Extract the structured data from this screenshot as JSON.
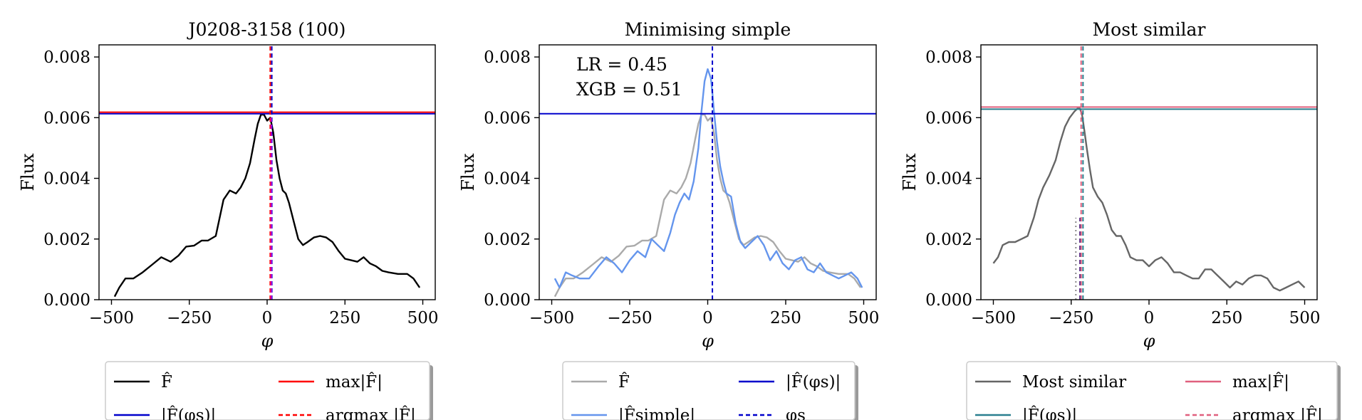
{
  "chart_data": [
    {
      "type": "line",
      "title": "J0208-3158 (100)",
      "xlabel": "φ",
      "ylabel": "Flux",
      "xlim": [
        -540,
        540
      ],
      "ylim": [
        0,
        0.0084
      ],
      "xticks": [
        -500,
        -250,
        0,
        250,
        500
      ],
      "xtick_labels": [
        "−500",
        "−250",
        "0",
        "250",
        "500"
      ],
      "yticks": [
        0,
        0.002,
        0.004,
        0.006,
        0.008
      ],
      "ytick_labels": [
        "0.000",
        "0.002",
        "0.004",
        "0.006",
        "0.008"
      ],
      "annotations": [],
      "series": [
        {
          "name": "F̂",
          "color": "#000000",
          "style": "solid",
          "x": [
            -490,
            -475,
            -455,
            -430,
            -400,
            -370,
            -340,
            -310,
            -285,
            -260,
            -235,
            -210,
            -190,
            -165,
            -140,
            -120,
            -100,
            -85,
            -70,
            -55,
            -40,
            -30,
            -20,
            -10,
            0,
            5,
            10,
            20,
            30,
            40,
            50,
            60,
            70,
            85,
            100,
            115,
            130,
            150,
            170,
            190,
            210,
            230,
            250,
            270,
            290,
            310,
            330,
            350,
            370,
            390,
            420,
            450,
            470,
            490
          ],
          "y": [
            0.0001,
            0.0004,
            0.0007,
            0.0007,
            0.0009,
            0.00115,
            0.0014,
            0.00125,
            0.00145,
            0.00175,
            0.00178,
            0.00195,
            0.00195,
            0.0021,
            0.0033,
            0.0036,
            0.0035,
            0.0037,
            0.004,
            0.0045,
            0.0053,
            0.0058,
            0.0061,
            0.0061,
            0.0059,
            0.00595,
            0.006,
            0.0055,
            0.0046,
            0.004,
            0.0036,
            0.0035,
            0.0032,
            0.0026,
            0.002,
            0.0018,
            0.0019,
            0.00205,
            0.0021,
            0.00205,
            0.0019,
            0.0016,
            0.00135,
            0.0013,
            0.00125,
            0.0014,
            0.0012,
            0.0011,
            0.00095,
            0.0009,
            0.00085,
            0.00085,
            0.0007,
            0.0004
          ]
        },
        {
          "name": "|F̂(φs)|",
          "color": "#0000cc",
          "style": "hline",
          "y": 0.00613
        },
        {
          "name": "max|F̂|",
          "color": "#ff0000",
          "style": "hline",
          "y": 0.00618
        },
        {
          "name": "argmax |F̂|",
          "color": "#ff0000",
          "style": "vline-dashed",
          "x": 10
        },
        {
          "name": "φs",
          "color": "#0000cc",
          "style": "vline-dashed",
          "x": 15
        },
        {
          "name": "",
          "color": "#cc00cc",
          "style": "vline-dashed",
          "x": 13,
          "ymax": 0.006
        }
      ],
      "legend": {
        "placement": "bottom-outside",
        "entries": [
          {
            "label": "F̂",
            "color": "#000000",
            "style": "solid"
          },
          {
            "label": "max|F̂|",
            "color": "#ff0000",
            "style": "solid"
          },
          {
            "label": "|F̂(φs)|",
            "color": "#0000cc",
            "style": "solid"
          },
          {
            "label": "argmax |F̂|",
            "color": "#ff0000",
            "style": "dashed"
          }
        ]
      }
    },
    {
      "type": "line",
      "title": "Minimising simple",
      "xlabel": "φ",
      "ylabel": "Flux",
      "xlim": [
        -540,
        540
      ],
      "ylim": [
        0,
        0.0084
      ],
      "xticks": [
        -500,
        -250,
        0,
        250,
        500
      ],
      "xtick_labels": [
        "−500",
        "−250",
        "0",
        "250",
        "500"
      ],
      "yticks": [
        0,
        0.002,
        0.004,
        0.006,
        0.008
      ],
      "ytick_labels": [
        "0.000",
        "0.002",
        "0.004",
        "0.006",
        "0.008"
      ],
      "annotations": [
        "LR = 0.45",
        "XGB = 0.51"
      ],
      "series": [
        {
          "name": "F̂",
          "color": "#aaaaaa",
          "style": "solid",
          "x": [
            -490,
            -475,
            -455,
            -430,
            -400,
            -370,
            -340,
            -310,
            -285,
            -260,
            -235,
            -210,
            -190,
            -165,
            -140,
            -120,
            -100,
            -85,
            -70,
            -55,
            -40,
            -30,
            -20,
            -10,
            0,
            5,
            10,
            20,
            30,
            40,
            50,
            60,
            70,
            85,
            100,
            115,
            130,
            150,
            170,
            190,
            210,
            230,
            250,
            270,
            290,
            310,
            330,
            350,
            370,
            390,
            420,
            450,
            470,
            490
          ],
          "y": [
            0.0001,
            0.0004,
            0.0007,
            0.0007,
            0.0009,
            0.00115,
            0.0014,
            0.00125,
            0.00145,
            0.00175,
            0.00178,
            0.00195,
            0.00195,
            0.0021,
            0.0033,
            0.0036,
            0.0035,
            0.0037,
            0.004,
            0.0045,
            0.0053,
            0.0058,
            0.0061,
            0.0061,
            0.0059,
            0.00595,
            0.006,
            0.0055,
            0.0046,
            0.004,
            0.0036,
            0.0035,
            0.0032,
            0.0026,
            0.002,
            0.0018,
            0.0019,
            0.00205,
            0.0021,
            0.00205,
            0.0019,
            0.0016,
            0.00135,
            0.0013,
            0.00125,
            0.0014,
            0.0012,
            0.0011,
            0.00095,
            0.0009,
            0.00085,
            0.00085,
            0.0007,
            0.0004
          ]
        },
        {
          "name": "|F̂simple|",
          "color": "#6495ed",
          "style": "solid",
          "x": [
            -490,
            -475,
            -455,
            -435,
            -410,
            -380,
            -350,
            -325,
            -300,
            -275,
            -250,
            -225,
            -200,
            -180,
            -160,
            -140,
            -120,
            -105,
            -90,
            -75,
            -60,
            -45,
            -30,
            -20,
            -10,
            0,
            10,
            15,
            20,
            30,
            40,
            50,
            60,
            75,
            90,
            105,
            120,
            140,
            160,
            180,
            200,
            220,
            240,
            260,
            280,
            300,
            320,
            340,
            360,
            380,
            400,
            420,
            440,
            460,
            480,
            495
          ],
          "y": [
            0.0007,
            0.0004,
            0.0009,
            0.0008,
            0.0007,
            0.0007,
            0.0011,
            0.0014,
            0.0012,
            0.0009,
            0.0013,
            0.0016,
            0.0014,
            0.002,
            0.0018,
            0.0016,
            0.0022,
            0.0028,
            0.0032,
            0.0035,
            0.0033,
            0.0039,
            0.005,
            0.0062,
            0.0072,
            0.0076,
            0.0073,
            0.0068,
            0.0062,
            0.0052,
            0.0044,
            0.0039,
            0.0035,
            0.0034,
            0.0025,
            0.0019,
            0.0017,
            0.0019,
            0.0021,
            0.0018,
            0.0013,
            0.0016,
            0.0012,
            0.001,
            0.0013,
            0.0014,
            0.001,
            0.0009,
            0.0012,
            0.0009,
            0.0008,
            0.0007,
            0.0008,
            0.0009,
            0.0007,
            0.0004
          ]
        },
        {
          "name": "|F̂(φs)|",
          "color": "#0000cc",
          "style": "hline",
          "y": 0.00613
        },
        {
          "name": "φs",
          "color": "#0000cc",
          "style": "vline-dashed",
          "x": 15
        }
      ],
      "legend": {
        "placement": "bottom-outside",
        "entries": [
          {
            "label": "F̂",
            "color": "#aaaaaa",
            "style": "solid"
          },
          {
            "label": "|F̂(φs)|",
            "color": "#0000cc",
            "style": "solid"
          },
          {
            "label": "|F̂simple|",
            "color": "#6495ed",
            "style": "solid"
          },
          {
            "label": "φs",
            "color": "#0000cc",
            "style": "dashed"
          }
        ]
      }
    },
    {
      "type": "line",
      "title": "Most similar",
      "xlabel": "φ",
      "ylabel": "Flux",
      "xlim": [
        -540,
        540
      ],
      "ylim": [
        0,
        0.0084
      ],
      "xticks": [
        -500,
        -250,
        0,
        250,
        500
      ],
      "xtick_labels": [
        "−500",
        "−250",
        "0",
        "250",
        "500"
      ],
      "yticks": [
        0,
        0.002,
        0.004,
        0.006,
        0.008
      ],
      "ytick_labels": [
        "0.000",
        "0.002",
        "0.004",
        "0.006",
        "0.008"
      ],
      "annotations": [],
      "series": [
        {
          "name": "Most similar",
          "color": "#666666",
          "style": "solid",
          "x": [
            -500,
            -485,
            -470,
            -450,
            -430,
            -410,
            -390,
            -370,
            -355,
            -340,
            -320,
            -300,
            -285,
            -270,
            -255,
            -240,
            -230,
            -222,
            -215,
            -208,
            -200,
            -190,
            -180,
            -165,
            -150,
            -135,
            -120,
            -105,
            -90,
            -75,
            -60,
            -40,
            -20,
            0,
            20,
            40,
            60,
            80,
            100,
            120,
            140,
            160,
            180,
            200,
            220,
            240,
            260,
            280,
            300,
            320,
            340,
            360,
            380,
            400,
            420,
            440,
            460,
            480,
            500
          ],
          "y": [
            0.0012,
            0.0014,
            0.0018,
            0.0019,
            0.0019,
            0.002,
            0.0021,
            0.0027,
            0.0033,
            0.0037,
            0.0041,
            0.0046,
            0.0052,
            0.0057,
            0.006,
            0.0062,
            0.0063,
            0.0063,
            0.0061,
            0.0056,
            0.005,
            0.0043,
            0.0037,
            0.0034,
            0.0032,
            0.0028,
            0.0023,
            0.0021,
            0.0021,
            0.0018,
            0.0014,
            0.0013,
            0.0013,
            0.0011,
            0.0013,
            0.0014,
            0.0012,
            0.0009,
            0.0009,
            0.0008,
            0.0007,
            0.0007,
            0.001,
            0.001,
            0.0008,
            0.0006,
            0.0004,
            0.0006,
            0.0005,
            0.0007,
            0.0008,
            0.0008,
            0.0007,
            0.0004,
            0.0003,
            0.0004,
            0.0005,
            0.0006,
            0.0004
          ]
        },
        {
          "name": "max|F̂|",
          "color": "#e0607e",
          "style": "hline",
          "y": 0.00635
        },
        {
          "name": "|F̂(φs)|",
          "color": "#2a7f8f",
          "style": "hline",
          "y": 0.00628
        },
        {
          "name": "argmax |F̂|",
          "color": "#e0607e",
          "style": "vline-dashed",
          "x": -218
        },
        {
          "name": "",
          "color": "#2a7f8f",
          "style": "vline-dashed",
          "x": -212
        },
        {
          "name": "",
          "color": "#888888",
          "style": "vline-dotted",
          "x": -235,
          "ymax": 0.0027
        },
        {
          "name": "",
          "color": "#6a3a8a",
          "style": "vline-dashed",
          "x": -222,
          "ymax": 0.0027
        }
      ],
      "legend": {
        "placement": "bottom-outside",
        "entries": [
          {
            "label": "Most similar",
            "color": "#666666",
            "style": "solid"
          },
          {
            "label": "max|F̂|",
            "color": "#e0607e",
            "style": "solid"
          },
          {
            "label": "|F̂(φs)|",
            "color": "#2a7f8f",
            "style": "solid"
          },
          {
            "label": "argmax |F̂|",
            "color": "#e0607e",
            "style": "dashed"
          }
        ]
      }
    }
  ]
}
